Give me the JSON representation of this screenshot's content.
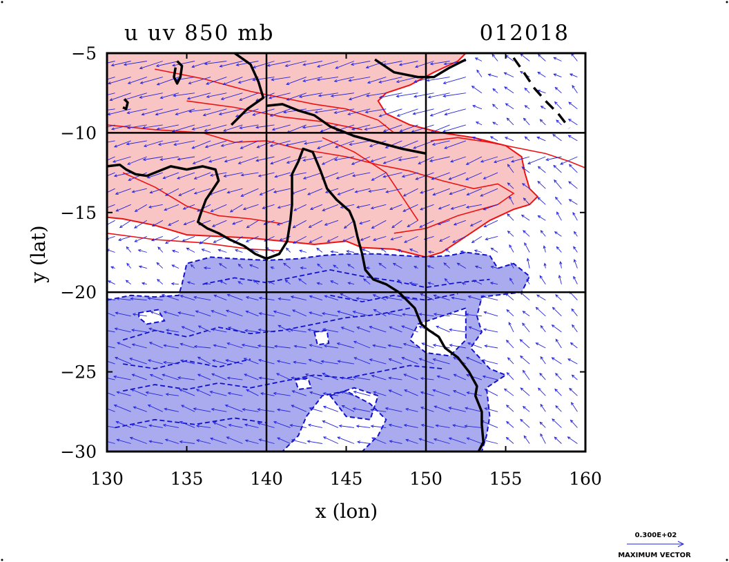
{
  "chart_data": {
    "type": "contour",
    "title_left": "u  uv  850  mb",
    "title_right": "012018",
    "xlabel": "x  (lon)",
    "ylabel": "y  (lat)",
    "xlim": [
      130,
      160
    ],
    "ylim": [
      -30,
      -5
    ],
    "xticks": [
      130,
      135,
      140,
      145,
      150,
      155,
      160
    ],
    "yticks": [
      -5,
      -10,
      -15,
      -20,
      -25,
      -30
    ],
    "xtick_labels": [
      "130",
      "135",
      "140",
      "145",
      "150",
      "155",
      "160"
    ],
    "ytick_labels": [
      "−5",
      "−10",
      "−15",
      "−20",
      "−25",
      "−30"
    ],
    "grid_x": [
      140,
      150
    ],
    "grid_y": [
      -10,
      -20
    ],
    "legend": {
      "value_label": "0.300E+02",
      "vector_label": "MAXIMUM VECTOR"
    },
    "colors": {
      "positive_fill": "#f8c4c4",
      "positive_contour": "#ee1111",
      "negative_fill": "#aaaaee",
      "negative_contour": "#1111cc",
      "vectors": "#2222dd",
      "coastline": "#000000"
    },
    "positive_region": [
      [
        130,
        -5
      ],
      [
        152.5,
        -5
      ],
      [
        152,
        -5.5
      ],
      [
        150.5,
        -6.2
      ],
      [
        149,
        -7
      ],
      [
        147.5,
        -7.5
      ],
      [
        147,
        -8
      ],
      [
        147.5,
        -8.8
      ],
      [
        149,
        -9.5
      ],
      [
        151,
        -10
      ],
      [
        153,
        -10.3
      ],
      [
        155,
        -10.8
      ],
      [
        156,
        -11.5
      ],
      [
        156.2,
        -12.5
      ],
      [
        156.5,
        -13.5
      ],
      [
        157,
        -14
      ],
      [
        156.5,
        -14.5
      ],
      [
        155.5,
        -14.8
      ],
      [
        154,
        -15.5
      ],
      [
        152.5,
        -16.5
      ],
      [
        151,
        -17.5
      ],
      [
        150,
        -17.8
      ],
      [
        148,
        -17.3
      ],
      [
        146,
        -17.2
      ],
      [
        145,
        -16.8
      ],
      [
        143,
        -17
      ],
      [
        141,
        -16.8
      ],
      [
        139,
        -16.6
      ],
      [
        137,
        -16.5
      ],
      [
        135,
        -16.4
      ],
      [
        133,
        -15.8
      ],
      [
        131,
        -15.4
      ],
      [
        130,
        -15.3
      ]
    ],
    "positive_inner_contours": [
      [
        [
          130,
          -9.5
        ],
        [
          133,
          -9.8
        ],
        [
          136,
          -10
        ],
        [
          138,
          -10.6
        ],
        [
          140,
          -10.5
        ],
        [
          142,
          -11
        ],
        [
          145,
          -11.5
        ],
        [
          147,
          -12
        ],
        [
          149,
          -12.4
        ],
        [
          151,
          -13
        ],
        [
          153,
          -13.5
        ],
        [
          154.5,
          -13.2
        ],
        [
          155.5,
          -13.8
        ],
        [
          154.5,
          -14.5
        ],
        [
          152,
          -15.2
        ],
        [
          150,
          -16
        ],
        [
          148,
          -16.3
        ]
      ],
      [
        [
          133,
          -6
        ],
        [
          136,
          -6.6
        ],
        [
          139,
          -7.4
        ],
        [
          141,
          -7.8
        ],
        [
          143,
          -8.2
        ],
        [
          145,
          -8.5
        ],
        [
          147,
          -9.2
        ],
        [
          148,
          -10
        ]
      ],
      [
        [
          131,
          -12.5
        ],
        [
          133,
          -13.4
        ],
        [
          135,
          -14.6
        ],
        [
          137,
          -15.2
        ],
        [
          139,
          -15.4
        ],
        [
          141,
          -15.7
        ]
      ],
      [
        [
          143.5,
          -10.3
        ],
        [
          145.5,
          -11.2
        ],
        [
          147.5,
          -12.5
        ],
        [
          148.5,
          -14
        ],
        [
          149.5,
          -15.5
        ]
      ],
      [
        [
          135,
          -8
        ],
        [
          138,
          -8.4
        ],
        [
          141,
          -9
        ],
        [
          143.5,
          -9.3
        ],
        [
          146,
          -9.8
        ]
      ]
    ],
    "negative_region": [
      [
        130,
        -20.5
      ],
      [
        131.5,
        -20.2
      ],
      [
        133,
        -20.3
      ],
      [
        134.5,
        -20.2
      ],
      [
        134.7,
        -19.5
      ],
      [
        135,
        -18.2
      ],
      [
        136.5,
        -17.8
      ],
      [
        138,
        -17.9
      ],
      [
        140,
        -18
      ],
      [
        142,
        -17.9
      ],
      [
        143.5,
        -17.7
      ],
      [
        145,
        -17.6
      ],
      [
        147,
        -17.6
      ],
      [
        148.5,
        -17.7
      ],
      [
        150,
        -17.8
      ],
      [
        151.5,
        -17.7
      ],
      [
        152.5,
        -17.5
      ],
      [
        154,
        -17.7
      ],
      [
        154.5,
        -18.5
      ],
      [
        155.5,
        -18.2
      ],
      [
        156.5,
        -19
      ],
      [
        156,
        -20
      ],
      [
        153.5,
        -20.3
      ],
      [
        153.2,
        -21.5
      ],
      [
        153.5,
        -22.5
      ],
      [
        152.8,
        -23.5
      ],
      [
        154,
        -24.8
      ],
      [
        155,
        -25.2
      ],
      [
        153.8,
        -26
      ],
      [
        154,
        -27.8
      ],
      [
        153.8,
        -29
      ],
      [
        153.5,
        -30
      ],
      [
        146,
        -30
      ],
      [
        147,
        -29
      ],
      [
        147.5,
        -28
      ],
      [
        146.5,
        -27
      ],
      [
        145,
        -26.2
      ],
      [
        143.5,
        -26.5
      ],
      [
        142.5,
        -27.8
      ],
      [
        142,
        -29
      ],
      [
        141,
        -30
      ],
      [
        141,
        -30
      ],
      [
        130,
        -30
      ]
    ],
    "negative_holes": [
      [
        [
          132,
          -21.3
        ],
        [
          133.2,
          -21.1
        ],
        [
          133.6,
          -21.8
        ],
        [
          132.5,
          -22
        ],
        [
          132,
          -21.6
        ]
      ],
      [
        [
          143,
          -22.5
        ],
        [
          143.8,
          -22.4
        ],
        [
          143.9,
          -23.2
        ],
        [
          143.2,
          -23.3
        ]
      ],
      [
        [
          141.8,
          -25.5
        ],
        [
          142.6,
          -25.4
        ],
        [
          142.8,
          -26
        ],
        [
          142,
          -26.1
        ]
      ],
      [
        [
          149.5,
          -22
        ],
        [
          151,
          -21.5
        ],
        [
          152.5,
          -21
        ],
        [
          152.5,
          -23
        ],
        [
          151.5,
          -24
        ],
        [
          150,
          -23.8
        ],
        [
          149,
          -23
        ]
      ],
      [
        [
          144,
          -26.5
        ],
        [
          145.5,
          -26
        ],
        [
          147,
          -26.5
        ],
        [
          146.5,
          -28
        ],
        [
          145,
          -27.8
        ]
      ]
    ],
    "negative_inner_contours": [
      [
        [
          131,
          -23
        ],
        [
          133,
          -22.4
        ],
        [
          135,
          -22.8
        ],
        [
          137,
          -22.2
        ],
        [
          139,
          -22.6
        ],
        [
          141,
          -22.4
        ],
        [
          143,
          -22
        ],
        [
          145,
          -21.6
        ],
        [
          147,
          -21.4
        ],
        [
          149,
          -21
        ]
      ],
      [
        [
          131,
          -26.2
        ],
        [
          133,
          -25.8
        ],
        [
          135,
          -26.1
        ],
        [
          137,
          -25.7
        ],
        [
          139,
          -26
        ],
        [
          141,
          -25.6
        ],
        [
          143,
          -25.2
        ],
        [
          145,
          -25.4
        ],
        [
          147,
          -25
        ],
        [
          149,
          -24.6
        ],
        [
          151,
          -24.8
        ]
      ],
      [
        [
          136,
          -19.5
        ],
        [
          138,
          -19.1
        ],
        [
          140,
          -19.4
        ],
        [
          142,
          -19
        ],
        [
          144,
          -18.6
        ],
        [
          146,
          -19
        ],
        [
          148,
          -19.3
        ],
        [
          150,
          -19.7
        ],
        [
          152,
          -19.4
        ],
        [
          154,
          -19.2
        ]
      ],
      [
        [
          130.5,
          -28.5
        ],
        [
          133,
          -28
        ],
        [
          135.5,
          -28.3
        ],
        [
          138,
          -27.9
        ],
        [
          140,
          -28.2
        ]
      ],
      [
        [
          144,
          -20.2
        ],
        [
          146,
          -20.6
        ],
        [
          148,
          -20.2
        ],
        [
          150,
          -20.5
        ],
        [
          152,
          -20.1
        ]
      ],
      [
        [
          131,
          -24.5
        ],
        [
          133,
          -24.8
        ],
        [
          135,
          -24.3
        ],
        [
          137,
          -24.7
        ],
        [
          139,
          -24.2
        ]
      ]
    ],
    "coastlines": [
      [
        [
          138,
          -5
        ],
        [
          139,
          -5.7
        ],
        [
          139.5,
          -6.8
        ],
        [
          139.8,
          -7.8
        ],
        [
          138.8,
          -8.5
        ],
        [
          137.8,
          -9.5
        ]
      ],
      [
        [
          140,
          -8.3
        ],
        [
          141,
          -8.2
        ],
        [
          142,
          -8.6
        ],
        [
          143,
          -8.9
        ],
        [
          144,
          -9.6
        ],
        [
          145.5,
          -10.2
        ],
        [
          147,
          -10.6
        ],
        [
          148.5,
          -11
        ],
        [
          150,
          -11.3
        ]
      ],
      [
        [
          130,
          -12.1
        ],
        [
          130.8,
          -12
        ],
        [
          131.2,
          -12.3
        ],
        [
          131.8,
          -12.6
        ],
        [
          132.5,
          -12.7
        ],
        [
          133.5,
          -12.3
        ],
        [
          134,
          -12.1
        ],
        [
          135,
          -12.3
        ],
        [
          136,
          -12.1
        ],
        [
          136.8,
          -12.3
        ],
        [
          137,
          -13
        ],
        [
          136.6,
          -13.6
        ],
        [
          136.2,
          -14.2
        ],
        [
          135.9,
          -15
        ],
        [
          135.7,
          -15.6
        ],
        [
          136.3,
          -16
        ],
        [
          137,
          -16.3
        ],
        [
          137.7,
          -16.7
        ],
        [
          138.6,
          -17.1
        ],
        [
          139.3,
          -17.6
        ],
        [
          140,
          -17.9
        ],
        [
          140.8,
          -17.6
        ],
        [
          141.3,
          -16.8
        ],
        [
          141.5,
          -15.5
        ],
        [
          141.6,
          -14.5
        ],
        [
          141.6,
          -13.5
        ],
        [
          141.6,
          -12.6
        ],
        [
          142,
          -11.8
        ],
        [
          142.3,
          -11
        ],
        [
          142.9,
          -11.2
        ],
        [
          143.4,
          -12.4
        ],
        [
          143.8,
          -13.5
        ],
        [
          144.4,
          -14.2
        ],
        [
          145.2,
          -14.9
        ],
        [
          145.5,
          -15.6
        ],
        [
          145.7,
          -16.5
        ],
        [
          146,
          -17.6
        ],
        [
          146.2,
          -18.6
        ],
        [
          146.7,
          -19.2
        ],
        [
          147.5,
          -19.5
        ],
        [
          148.3,
          -20
        ],
        [
          148.8,
          -20.5
        ],
        [
          149.3,
          -21
        ],
        [
          149.7,
          -22
        ],
        [
          150.2,
          -22.4
        ],
        [
          150.8,
          -22.8
        ],
        [
          151.2,
          -23.5
        ],
        [
          152,
          -24.1
        ],
        [
          152.7,
          -25
        ],
        [
          153.2,
          -25.9
        ],
        [
          153.1,
          -26.5
        ],
        [
          153.5,
          -27.5
        ],
        [
          153.5,
          -28.3
        ],
        [
          153.6,
          -29.4
        ],
        [
          153.3,
          -30
        ]
      ]
    ],
    "islands": [
      [
        [
          134.4,
          -5.5
        ],
        [
          134.7,
          -5.8
        ],
        [
          134.6,
          -6.5
        ],
        [
          134.4,
          -6.9
        ],
        [
          134.2,
          -6.5
        ],
        [
          134.3,
          -5.9
        ]
      ],
      [
        [
          131.1,
          -7.9
        ],
        [
          131.3,
          -8.1
        ],
        [
          131.2,
          -8.5
        ],
        [
          131,
          -8.4
        ]
      ],
      [
        [
          146.8,
          -5.4
        ],
        [
          148,
          -6.2
        ],
        [
          149.5,
          -6.5
        ],
        [
          150.5,
          -6.5
        ],
        [
          151.5,
          -5.9
        ],
        [
          152.5,
          -5.4
        ]
      ]
    ],
    "dashed_lines": [
      [
        [
          155.5,
          -5.3
        ],
        [
          156,
          -6
        ],
        [
          156.8,
          -7.2
        ],
        [
          157.5,
          -8
        ],
        [
          158.3,
          -8.8
        ],
        [
          159,
          -9.7
        ]
      ]
    ],
    "zero_contour": [
      [
        [
          150.3,
          -10.5
        ],
        [
          152,
          -10.3
        ],
        [
          154,
          -10.6
        ],
        [
          156,
          -11
        ],
        [
          157.5,
          -11.3
        ],
        [
          159,
          -11.8
        ],
        [
          160,
          -12.2
        ]
      ],
      [
        [
          130,
          -16.3
        ],
        [
          133,
          -16.7
        ],
        [
          136,
          -16.9
        ],
        [
          139,
          -17.3
        ],
        [
          141,
          -17.4
        ]
      ]
    ],
    "vector_field": {
      "description": "850 mb wind vectors: strong easterly/southeasterly flow across the domain",
      "max_vector": 30
    }
  }
}
